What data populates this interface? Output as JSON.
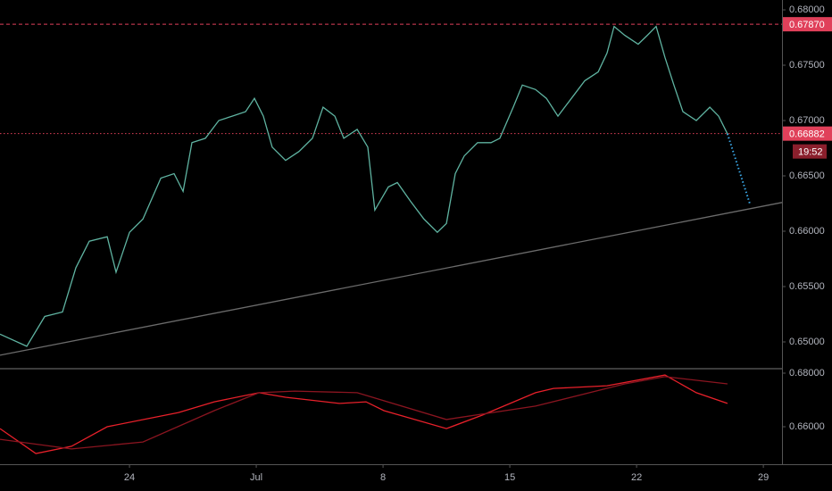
{
  "chart_data": [
    {
      "type": "line",
      "xlim": [
        -7.15,
        36.03
      ],
      "ylim": [
        0.64766,
        0.68089
      ],
      "yticks": [
        {
          "value": 0.68,
          "label": "0.68000"
        },
        {
          "value": 0.675,
          "label": "0.67500"
        },
        {
          "value": 0.67,
          "label": "0.67000"
        },
        {
          "value": 0.665,
          "label": "0.66500"
        },
        {
          "value": 0.66,
          "label": "0.66000"
        },
        {
          "value": 0.655,
          "label": "0.65500"
        },
        {
          "value": 0.65,
          "label": "0.65000"
        }
      ],
      "series": [
        {
          "color": "#5fb3a1",
          "style": "solid",
          "x": [
            -7.15,
            -5.67,
            -4.68,
            -3.7,
            -2.96,
            -2.22,
            -1.23,
            -0.74,
            0,
            0.74,
            1.73,
            2.46,
            2.96,
            3.45,
            4.19,
            4.93,
            5.67,
            6.41,
            6.9,
            7.39,
            7.88,
            8.62,
            9.36,
            10.1,
            10.69,
            11.34,
            11.83,
            12.57,
            13.16,
            13.55,
            14.29,
            14.79,
            15.52,
            16.26,
            17.0,
            17.5,
            17.99,
            18.48,
            19.22,
            19.96,
            20.45,
            21.19,
            21.69,
            22.42,
            23.02,
            23.66,
            24.4,
            25.14,
            25.88,
            26.37,
            26.76,
            27.35,
            28.09,
            28.59,
            29.08,
            29.57,
            30.06,
            30.56,
            31.3,
            32.04,
            32.53,
            33.02
          ],
          "values": [
            0.6507,
            0.6496,
            0.6523,
            0.6527,
            0.6567,
            0.6591,
            0.6595,
            0.6563,
            0.6599,
            0.6611,
            0.6648,
            0.6652,
            0.6636,
            0.668,
            0.6684,
            0.67,
            0.6704,
            0.6708,
            0.672,
            0.6704,
            0.6676,
            0.6664,
            0.6672,
            0.6684,
            0.6712,
            0.6704,
            0.6684,
            0.6692,
            0.6676,
            0.6619,
            0.664,
            0.6644,
            0.6627,
            0.6611,
            0.6599,
            0.6607,
            0.6652,
            0.6668,
            0.668,
            0.668,
            0.6684,
            0.6712,
            0.6732,
            0.6728,
            0.672,
            0.6704,
            0.672,
            0.6736,
            0.6744,
            0.6761,
            0.6785,
            0.6777,
            0.6769,
            0.6777,
            0.6785,
            0.6757,
            0.6732,
            0.6708,
            0.67,
            0.6712,
            0.6704,
            0.6688
          ]
        },
        {
          "color": "#6b6b6b",
          "style": "solid",
          "x": [
            -7.15,
            36.03
          ],
          "values": [
            0.6488,
            0.6626
          ]
        },
        {
          "color": "#3aa8e8",
          "style": "dotted",
          "x": [
            33.02,
            34.25
          ],
          "values": [
            0.6688,
            0.6625
          ]
        }
      ],
      "lines": [
        {
          "value": 0.6787,
          "label": "0.67870",
          "color": "#e0405a",
          "style": "dashed"
        },
        {
          "value": 0.66882,
          "label": "0.66882",
          "time_label": "19:52",
          "color": "#e0405a",
          "style": "dotted"
        }
      ]
    },
    {
      "type": "line",
      "xlim": [
        -7.15,
        36.03
      ],
      "ylim": [
        0.646,
        0.68167
      ],
      "yticks": [
        {
          "value": 0.68,
          "label": "0.68000"
        },
        {
          "value": 0.66,
          "label": "0.66000"
        }
      ],
      "xticks": [
        {
          "value": 0,
          "label": "24"
        },
        {
          "value": 7,
          "label": "Jul"
        },
        {
          "value": 14,
          "label": "8"
        },
        {
          "value": 21,
          "label": "15"
        },
        {
          "value": 28,
          "label": "22"
        },
        {
          "value": 35,
          "label": "29"
        }
      ],
      "series": [
        {
          "color": "#e8202a",
          "style": "solid",
          "x": [
            -7.15,
            -5.17,
            -3.2,
            -1.23,
            2.71,
            4.68,
            7.15,
            8.62,
            11.58,
            13.06,
            14.05,
            17.5,
            19.47,
            22.42,
            23.41,
            26.37,
            29.57,
            31.3,
            33.02
          ],
          "values": [
            0.6593,
            0.65,
            0.6527,
            0.66,
            0.6653,
            0.6693,
            0.6727,
            0.671,
            0.6687,
            0.6693,
            0.666,
            0.6593,
            0.6643,
            0.6727,
            0.6743,
            0.6753,
            0.6793,
            0.6727,
            0.6687
          ]
        },
        {
          "color": "#8a1520",
          "style": "solid",
          "x": [
            -7.15,
            -3.2,
            0.74,
            4.68,
            7.15,
            9.12,
            12.57,
            17.5,
            22.42,
            27.35,
            29.57,
            33.02
          ],
          "values": [
            0.6553,
            0.6517,
            0.6543,
            0.666,
            0.6727,
            0.6733,
            0.6727,
            0.6627,
            0.6677,
            0.676,
            0.6787,
            0.676
          ]
        }
      ]
    }
  ]
}
